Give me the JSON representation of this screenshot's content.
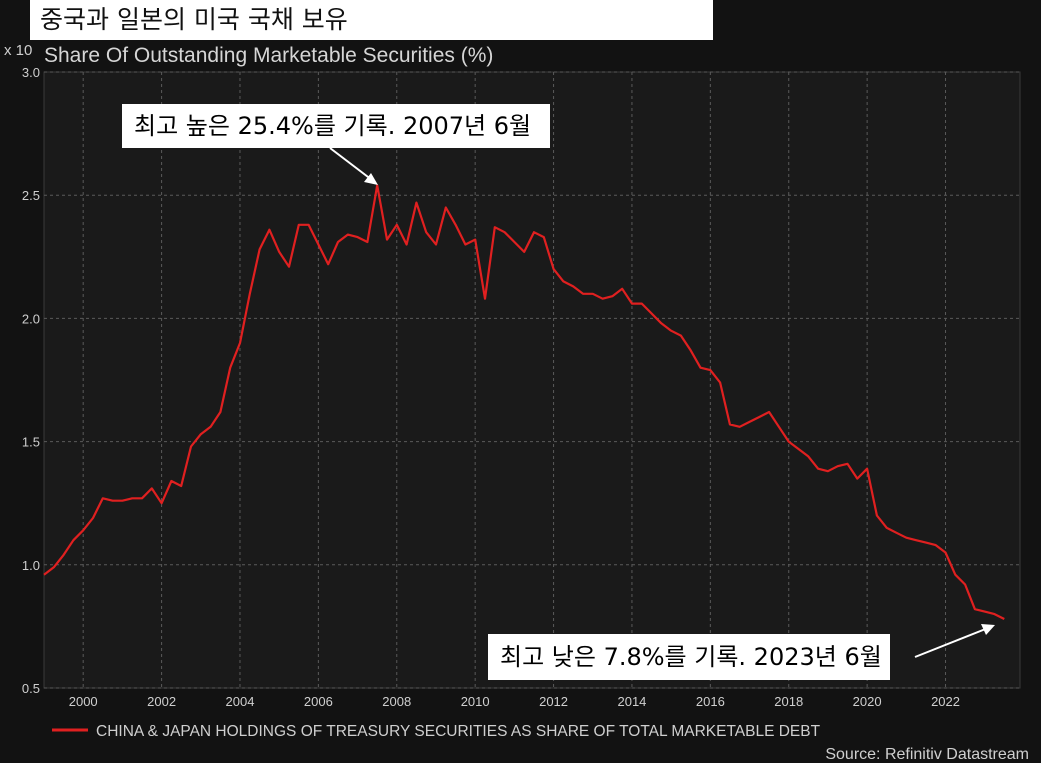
{
  "header": {
    "title": "중국과 일본의 미국 국채 보유"
  },
  "callouts": {
    "high": "최고 높은 25.4%를 기록. 2007년 6월",
    "low": "최고 낮은 7.8%를 기록. 2023년 6월"
  },
  "colors": {
    "background": "#121212",
    "line": "#e02020",
    "grid": "#5a5a5a",
    "text": "#cfcfcf"
  },
  "chart_data": {
    "type": "line",
    "title": "Share Of Outstanding Marketable Securities (%)",
    "scale_label": "x 10",
    "source": "Source: Refinitiv Datastream",
    "legend_position": "bottom-left",
    "grid": true,
    "xlim": [
      1999.0,
      2023.9
    ],
    "ylim": [
      0.5,
      3.0
    ],
    "y_ticks": [
      "0.5",
      "1.0",
      "1.5",
      "2.0",
      "2.5",
      "3.0"
    ],
    "x_ticks": [
      "2000",
      "2002",
      "2004",
      "2006",
      "2008",
      "2010",
      "2012",
      "2014",
      "2016",
      "2018",
      "2020",
      "2022"
    ],
    "series": [
      {
        "name": "CHINA & JAPAN HOLDINGS OF TREASURY SECURITIES AS SHARE OF TOTAL MARKETABLE DEBT",
        "x": [
          1999.0,
          1999.25,
          1999.5,
          1999.75,
          2000.0,
          2000.25,
          2000.5,
          2000.75,
          2001.0,
          2001.25,
          2001.5,
          2001.75,
          2002.0,
          2002.25,
          2002.5,
          2002.75,
          2003.0,
          2003.25,
          2003.5,
          2003.75,
          2004.0,
          2004.25,
          2004.5,
          2004.75,
          2005.0,
          2005.25,
          2005.5,
          2005.75,
          2006.0,
          2006.25,
          2006.5,
          2006.75,
          2007.0,
          2007.25,
          2007.5,
          2007.75,
          2008.0,
          2008.25,
          2008.5,
          2008.75,
          2009.0,
          2009.25,
          2009.5,
          2009.75,
          2010.0,
          2010.25,
          2010.5,
          2010.75,
          2011.0,
          2011.25,
          2011.5,
          2011.75,
          2012.0,
          2012.25,
          2012.5,
          2012.75,
          2013.0,
          2013.25,
          2013.5,
          2013.75,
          2014.0,
          2014.25,
          2014.5,
          2014.75,
          2015.0,
          2015.25,
          2015.5,
          2015.75,
          2016.0,
          2016.25,
          2016.5,
          2016.75,
          2017.0,
          2017.25,
          2017.5,
          2017.75,
          2018.0,
          2018.25,
          2018.5,
          2018.75,
          2019.0,
          2019.25,
          2019.5,
          2019.75,
          2020.0,
          2020.25,
          2020.5,
          2020.75,
          2021.0,
          2021.25,
          2021.5,
          2021.75,
          2022.0,
          2022.25,
          2022.5,
          2022.75,
          2023.0,
          2023.25,
          2023.5
        ],
        "y": [
          0.96,
          0.99,
          1.04,
          1.1,
          1.14,
          1.19,
          1.27,
          1.26,
          1.26,
          1.27,
          1.27,
          1.31,
          1.25,
          1.34,
          1.32,
          1.48,
          1.53,
          1.56,
          1.62,
          1.8,
          1.9,
          2.1,
          2.28,
          2.36,
          2.27,
          2.21,
          2.38,
          2.38,
          2.3,
          2.22,
          2.31,
          2.34,
          2.33,
          2.31,
          2.54,
          2.32,
          2.38,
          2.3,
          2.47,
          2.35,
          2.3,
          2.45,
          2.38,
          2.3,
          2.32,
          2.08,
          2.37,
          2.35,
          2.31,
          2.27,
          2.35,
          2.33,
          2.2,
          2.15,
          2.13,
          2.1,
          2.1,
          2.08,
          2.09,
          2.12,
          2.06,
          2.06,
          2.02,
          1.98,
          1.95,
          1.93,
          1.87,
          1.8,
          1.79,
          1.74,
          1.57,
          1.56,
          1.58,
          1.6,
          1.62,
          1.56,
          1.5,
          1.47,
          1.44,
          1.39,
          1.38,
          1.4,
          1.41,
          1.35,
          1.39,
          1.2,
          1.15,
          1.13,
          1.11,
          1.1,
          1.09,
          1.08,
          1.05,
          0.96,
          0.92,
          0.82,
          0.81,
          0.8,
          0.78
        ]
      }
    ]
  }
}
